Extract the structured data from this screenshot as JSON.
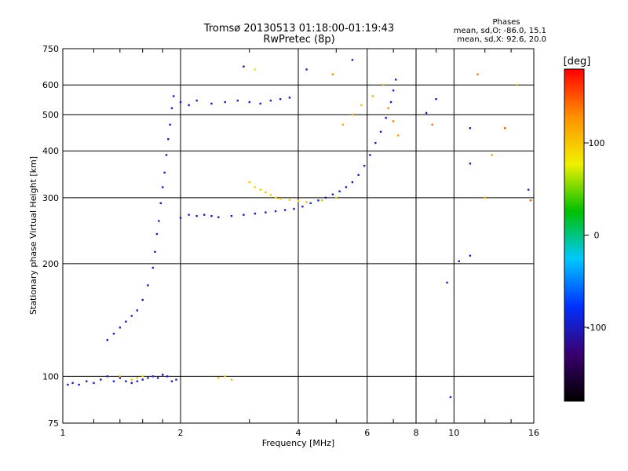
{
  "chart_data": {
    "type": "scatter",
    "title": "Tromsø 20130513 01:18:00-01:19:43",
    "subtitle": "RwPretec (8p)",
    "xlabel": "Frequency [MHz]",
    "ylabel": "Stationary phase Virtual Height [km]",
    "x_scale": "log",
    "y_scale": "log",
    "xlim": [
      1,
      16
    ],
    "ylim": [
      75,
      750
    ],
    "x_ticks": [
      1,
      2,
      4,
      6,
      8,
      10,
      16
    ],
    "y_ticks": [
      75,
      100,
      200,
      300,
      400,
      500,
      600,
      750
    ],
    "grid": true,
    "stats": {
      "heading": "Phases",
      "o_line": "mean, sd,O:  -86.0, 15.1",
      "x_line": "mean, sd,X:  92.6, 20.0"
    },
    "colorbar": {
      "label": "[deg]",
      "ticks": [
        100,
        0,
        -100
      ],
      "range": [
        -180,
        180
      ],
      "colors": [
        "#000000",
        "#3a0070",
        "#0030ff",
        "#00c8ff",
        "#00c000",
        "#f0f000",
        "#ff9000",
        "#ff0000"
      ]
    },
    "series": [
      {
        "points": [
          [
            1.03,
            95,
            -95
          ],
          [
            1.06,
            96,
            -100
          ],
          [
            1.1,
            95,
            -90
          ],
          [
            1.15,
            97,
            -100
          ],
          [
            1.2,
            96,
            -95
          ],
          [
            1.25,
            98,
            -110
          ],
          [
            1.3,
            100,
            -100
          ],
          [
            1.35,
            97,
            -95
          ],
          [
            1.4,
            99,
            -100
          ],
          [
            1.45,
            97,
            -105
          ],
          [
            1.5,
            96,
            -100
          ],
          [
            1.55,
            97,
            -95
          ],
          [
            1.6,
            98,
            -100
          ],
          [
            1.65,
            99,
            -90
          ],
          [
            1.7,
            100,
            -95
          ],
          [
            1.75,
            99,
            -100
          ],
          [
            1.8,
            101,
            -105
          ],
          [
            1.85,
            100,
            -100
          ],
          [
            1.9,
            97,
            -95
          ],
          [
            1.95,
            98,
            -100
          ]
        ]
      },
      {
        "points": [
          [
            1.3,
            125,
            -95
          ],
          [
            1.35,
            130,
            -100
          ],
          [
            1.4,
            135,
            -90
          ],
          [
            1.45,
            140,
            -100
          ],
          [
            1.5,
            145,
            -95
          ],
          [
            1.55,
            150,
            -100
          ],
          [
            1.6,
            160,
            -105
          ],
          [
            1.65,
            175,
            -95
          ],
          [
            1.7,
            195,
            -100
          ],
          [
            1.72,
            215,
            -100
          ],
          [
            1.74,
            240,
            -95
          ],
          [
            1.76,
            260,
            -100
          ],
          [
            1.78,
            290,
            -110
          ],
          [
            1.8,
            320,
            -100
          ],
          [
            1.82,
            350,
            -95
          ],
          [
            1.84,
            390,
            -100
          ],
          [
            1.86,
            430,
            -105
          ],
          [
            1.88,
            470,
            -100
          ],
          [
            1.9,
            520,
            -95
          ],
          [
            1.92,
            560,
            -100
          ]
        ]
      },
      {
        "points": [
          [
            2.0,
            265,
            -100
          ],
          [
            2.1,
            270,
            -95
          ],
          [
            2.2,
            268,
            -100
          ],
          [
            2.3,
            270,
            -105
          ],
          [
            2.4,
            268,
            -95
          ],
          [
            2.5,
            266,
            -100
          ],
          [
            2.7,
            268,
            -100
          ],
          [
            2.9,
            270,
            -95
          ],
          [
            3.1,
            272,
            -100
          ],
          [
            3.3,
            274,
            -105
          ],
          [
            3.5,
            276,
            -100
          ],
          [
            3.7,
            278,
            -95
          ],
          [
            3.9,
            280,
            -100
          ],
          [
            4.1,
            284,
            -100
          ],
          [
            4.3,
            290,
            -95
          ],
          [
            4.5,
            295,
            -100
          ],
          [
            4.7,
            300,
            -105
          ],
          [
            4.9,
            306,
            -100
          ],
          [
            5.1,
            312,
            -95
          ],
          [
            5.3,
            320,
            -100
          ],
          [
            5.5,
            330,
            -100
          ],
          [
            5.7,
            345,
            -95
          ],
          [
            5.9,
            365,
            -100
          ],
          [
            6.1,
            390,
            -105
          ],
          [
            6.3,
            420,
            -100
          ],
          [
            6.5,
            450,
            -95
          ],
          [
            6.7,
            490,
            -100
          ],
          [
            6.9,
            540,
            -100
          ],
          [
            7.0,
            580,
            -95
          ],
          [
            7.1,
            620,
            -100
          ]
        ]
      },
      {
        "points": [
          [
            2.0,
            540,
            -100
          ],
          [
            2.1,
            530,
            -95
          ],
          [
            2.2,
            545,
            -100
          ],
          [
            2.4,
            535,
            -105
          ],
          [
            2.6,
            540,
            -100
          ],
          [
            2.8,
            545,
            -95
          ],
          [
            3.0,
            540,
            -100
          ],
          [
            3.2,
            535,
            -100
          ],
          [
            3.4,
            545,
            -95
          ],
          [
            3.6,
            550,
            -100
          ],
          [
            3.8,
            555,
            -105
          ]
        ]
      },
      {
        "points": [
          [
            3.0,
            330,
            100
          ],
          [
            3.1,
            320,
            95
          ],
          [
            3.2,
            315,
            100
          ],
          [
            3.3,
            310,
            105
          ],
          [
            3.4,
            305,
            100
          ],
          [
            3.5,
            300,
            95
          ],
          [
            3.6,
            298,
            100
          ],
          [
            3.8,
            296,
            100
          ],
          [
            4.0,
            294,
            95
          ],
          [
            4.2,
            292,
            100
          ],
          [
            4.6,
            295,
            105
          ],
          [
            5.0,
            300,
            100
          ]
        ]
      },
      {
        "points": [
          [
            1.4,
            100,
            110
          ],
          [
            1.5,
            98,
            100
          ],
          [
            1.55,
            99,
            105
          ],
          [
            1.6,
            100,
            95
          ],
          [
            2.5,
            99,
            105
          ],
          [
            2.6,
            100,
            100
          ],
          [
            2.7,
            98,
            110
          ]
        ]
      },
      {
        "points": [
          [
            5.2,
            470,
            120
          ],
          [
            5.5,
            500,
            110
          ],
          [
            5.8,
            530,
            100
          ],
          [
            6.2,
            560,
            115
          ],
          [
            6.6,
            600,
            110
          ],
          [
            6.8,
            520,
            130
          ],
          [
            7.0,
            480,
            140
          ],
          [
            7.2,
            440,
            120
          ]
        ]
      },
      {
        "points": [
          [
            11.0,
            210,
            -100
          ],
          [
            11.0,
            370,
            -100
          ],
          [
            11.0,
            460,
            -100
          ],
          [
            11.5,
            640,
            140
          ],
          [
            12.0,
            300,
            110
          ],
          [
            12.5,
            390,
            120
          ],
          [
            13.5,
            460,
            150
          ],
          [
            14.5,
            600,
            110
          ],
          [
            15.5,
            315,
            -100
          ],
          [
            15.7,
            295,
            150
          ],
          [
            9.6,
            178,
            -100
          ],
          [
            10.3,
            203,
            -100
          ],
          [
            9.8,
            88,
            -100
          ],
          [
            8.5,
            505,
            -110
          ],
          [
            8.8,
            470,
            140
          ],
          [
            9.0,
            550,
            -100
          ],
          [
            5.5,
            700,
            -100
          ],
          [
            4.9,
            640,
            130
          ],
          [
            4.2,
            660,
            -100
          ],
          [
            2.9,
            672,
            -120
          ],
          [
            3.1,
            660,
            90
          ]
        ]
      }
    ]
  }
}
